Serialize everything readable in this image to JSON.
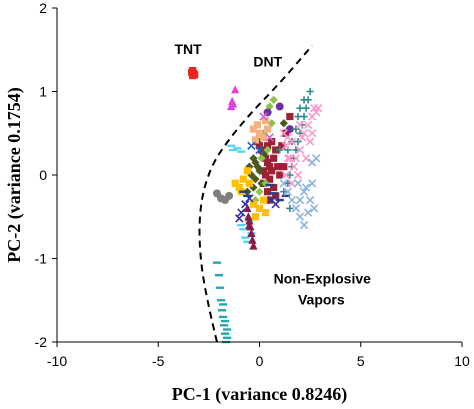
{
  "chart_data": {
    "type": "scatter",
    "title": "",
    "xlabel": "PC-1 (variance 0.8246)",
    "ylabel": "PC-2 (variance 0.1754)",
    "xlim": [
      -10,
      10
    ],
    "ylim": [
      -2,
      2
    ],
    "xticks": [
      "-10",
      "-5",
      "0",
      "5",
      "10"
    ],
    "yticks": [
      "-2",
      "-1",
      "0",
      "1",
      "2"
    ],
    "grid": false,
    "legend": "none",
    "annotations": [
      {
        "text": "TNT",
        "x": -4.2,
        "y": 1.45
      },
      {
        "text": "DNT",
        "x": -0.3,
        "y": 1.3
      },
      {
        "text": "Non-Explosive",
        "x": 0.7,
        "y": -1.3
      },
      {
        "text": "Vapors",
        "x": 1.9,
        "y": -1.55
      }
    ],
    "boundary": {
      "style": "dashed",
      "color": "#000000",
      "x": [
        -2.1,
        -2.7,
        -3.0,
        -2.9,
        -2.4,
        -1.6,
        -0.4,
        1.0,
        2.6
      ],
      "y": [
        -2.0,
        -1.4,
        -0.8,
        -0.3,
        0.1,
        0.4,
        0.75,
        1.1,
        1.55
      ]
    },
    "series": [
      {
        "color": "#e8261c",
        "marker": "square",
        "points": [
          [
            -3.3,
            1.25
          ],
          [
            -3.25,
            1.22
          ],
          [
            -3.3,
            1.19
          ],
          [
            -3.2,
            1.2
          ],
          [
            -3.35,
            1.23
          ]
        ]
      },
      {
        "color": "#e040e0",
        "marker": "triangle",
        "points": [
          [
            -1.2,
            1.02
          ],
          [
            -1.35,
            0.88
          ],
          [
            -1.4,
            0.82
          ],
          [
            -1.3,
            0.85
          ]
        ]
      },
      {
        "color": "#2aa6b0",
        "marker": "dash",
        "points": [
          [
            -2.1,
            -1.05
          ],
          [
            -2.0,
            -1.2
          ],
          [
            -1.95,
            -1.35
          ],
          [
            -1.9,
            -1.5
          ],
          [
            -1.85,
            -1.62
          ],
          [
            -1.8,
            -1.7
          ],
          [
            -1.75,
            -1.8
          ],
          [
            -1.7,
            -1.9
          ],
          [
            -1.65,
            -2.0
          ],
          [
            -1.7,
            -1.75
          ],
          [
            -1.8,
            -1.55
          ],
          [
            -1.6,
            -1.85
          ],
          [
            -1.6,
            -1.95
          ]
        ]
      },
      {
        "color": "#55d8ec",
        "marker": "dash",
        "points": [
          [
            -0.8,
            -0.65
          ],
          [
            -0.7,
            -0.75
          ],
          [
            -0.6,
            -0.8
          ],
          [
            -0.5,
            -0.55
          ],
          [
            -0.9,
            -0.6
          ],
          [
            -0.4,
            -0.7
          ],
          [
            -1.4,
            0.35
          ],
          [
            -1.3,
            0.3
          ],
          [
            -1.1,
            0.32
          ],
          [
            -0.9,
            0.28
          ]
        ]
      },
      {
        "color": "#8b1a4a",
        "marker": "triangle",
        "points": [
          [
            -0.6,
            -0.4
          ],
          [
            -0.55,
            -0.5
          ],
          [
            -0.5,
            -0.55
          ],
          [
            -0.45,
            -0.62
          ],
          [
            -0.4,
            -0.7
          ],
          [
            -0.35,
            -0.78
          ],
          [
            -0.5,
            -0.6
          ],
          [
            -0.3,
            -0.85
          ]
        ]
      },
      {
        "color": "#9b2335",
        "marker": "square",
        "points": [
          [
            -0.1,
            0.4
          ],
          [
            0.0,
            0.35
          ],
          [
            0.1,
            0.3
          ],
          [
            0.2,
            0.25
          ],
          [
            0.3,
            0.2
          ],
          [
            0.4,
            0.15
          ],
          [
            0.5,
            0.1
          ],
          [
            0.6,
            0.05
          ],
          [
            0.3,
            0.0
          ],
          [
            0.2,
            -0.1
          ],
          [
            0.4,
            -0.2
          ],
          [
            0.5,
            -0.3
          ],
          [
            0.7,
            0.2
          ],
          [
            0.9,
            0.1
          ],
          [
            0.8,
            0.3
          ],
          [
            0.6,
            0.4
          ],
          [
            0.5,
            -0.05
          ],
          [
            0.7,
            -0.15
          ],
          [
            1.0,
            0.0
          ],
          [
            0.4,
            0.35
          ],
          [
            0.2,
            0.05
          ],
          [
            0.8,
            -0.25
          ],
          [
            1.2,
            0.1
          ],
          [
            1.3,
            0.5
          ],
          [
            1.5,
            0.7
          ],
          [
            1.1,
            0.35
          ]
        ]
      },
      {
        "color": "#4a5a1c",
        "marker": "diamond",
        "points": [
          [
            -0.3,
            0.2
          ],
          [
            -0.2,
            0.15
          ],
          [
            -0.1,
            0.1
          ],
          [
            0.0,
            0.05
          ],
          [
            -0.4,
            0.0
          ],
          [
            -0.2,
            -0.05
          ],
          [
            0.1,
            -0.1
          ],
          [
            -0.5,
            0.1
          ],
          [
            -0.3,
            -0.15
          ],
          [
            0.2,
            0.25
          ],
          [
            1.2,
            0.62
          ],
          [
            -0.6,
            -0.2
          ]
        ]
      },
      {
        "color": "#8bc34a",
        "marker": "diamond",
        "points": [
          [
            0.1,
            0.2
          ],
          [
            0.0,
            -0.2
          ],
          [
            -0.2,
            -0.3
          ],
          [
            0.3,
            -0.1
          ],
          [
            0.4,
            0.3
          ],
          [
            0.6,
            0.62
          ],
          [
            0.7,
            0.9
          ],
          [
            0.5,
            0.82
          ],
          [
            0.2,
            0.5
          ]
        ]
      },
      {
        "color": "#ffc000",
        "marker": "square",
        "points": [
          [
            -1.2,
            -0.1
          ],
          [
            -1.0,
            -0.15
          ],
          [
            -0.8,
            -0.05
          ],
          [
            -0.6,
            0.05
          ],
          [
            -0.9,
            -0.2
          ],
          [
            -0.5,
            -0.1
          ],
          [
            -0.3,
            -0.35
          ],
          [
            0.0,
            -0.4
          ],
          [
            -0.2,
            -0.5
          ],
          [
            0.3,
            -0.45
          ],
          [
            0.2,
            -0.3
          ]
        ]
      },
      {
        "color": "#f4b183",
        "marker": "square",
        "points": [
          [
            -0.1,
            0.6
          ],
          [
            -0.3,
            0.55
          ],
          [
            0.0,
            0.5
          ],
          [
            0.3,
            0.65
          ],
          [
            0.4,
            0.55
          ],
          [
            -0.2,
            0.42
          ],
          [
            0.2,
            0.45
          ]
        ]
      },
      {
        "color": "#7f7f7f",
        "marker": "circle",
        "points": [
          [
            -2.1,
            -0.22
          ],
          [
            -1.9,
            -0.28
          ],
          [
            -1.7,
            -0.3
          ],
          [
            -1.5,
            -0.25
          ]
        ]
      },
      {
        "color": "#333399",
        "marker": "x",
        "points": [
          [
            -0.9,
            -0.45
          ],
          [
            -0.7,
            -0.35
          ],
          [
            -0.5,
            -0.28
          ],
          [
            -1.0,
            -0.52
          ],
          [
            0.6,
            -0.3
          ],
          [
            0.8,
            -0.35
          ]
        ]
      },
      {
        "color": "#1f3f8f",
        "marker": "dash",
        "points": [
          [
            -0.8,
            -0.2
          ],
          [
            -0.6,
            -0.25
          ],
          [
            0.5,
            -0.12
          ],
          [
            0.7,
            -0.22
          ],
          [
            1.0,
            -0.3
          ],
          [
            1.3,
            -0.25
          ]
        ]
      },
      {
        "color": "#7030a0",
        "marker": "circle",
        "points": [
          [
            1.0,
            0.82
          ],
          [
            0.4,
            0.75
          ],
          [
            1.5,
            0.55
          ]
        ]
      },
      {
        "color": "#cc66cc",
        "marker": "x",
        "points": [
          [
            0.2,
            0.7
          ],
          [
            0.5,
            0.45
          ]
        ]
      },
      {
        "color": "#2e8b8b",
        "marker": "plus",
        "points": [
          [
            1.2,
            -0.2
          ],
          [
            1.4,
            -0.1
          ],
          [
            1.5,
            0.0
          ],
          [
            1.6,
            0.1
          ],
          [
            1.7,
            0.2
          ],
          [
            1.8,
            0.3
          ],
          [
            1.9,
            0.4
          ],
          [
            2.0,
            0.5
          ],
          [
            2.1,
            0.6
          ],
          [
            2.2,
            0.7
          ],
          [
            2.3,
            0.8
          ],
          [
            2.4,
            0.9
          ],
          [
            2.5,
            1.0
          ],
          [
            1.6,
            0.4
          ],
          [
            1.9,
            0.7
          ],
          [
            2.2,
            0.9
          ],
          [
            1.4,
            0.3
          ],
          [
            1.8,
            0.55
          ],
          [
            2.0,
            0.8
          ],
          [
            1.5,
            -0.4
          ],
          [
            1.0,
            0.3
          ]
        ]
      },
      {
        "color": "#ff99cc",
        "marker": "x",
        "points": [
          [
            1.2,
            0.5
          ],
          [
            1.4,
            0.45
          ],
          [
            1.6,
            0.4
          ],
          [
            1.5,
            0.2
          ],
          [
            1.7,
            0.1
          ],
          [
            1.3,
            0.0
          ],
          [
            1.6,
            -0.1
          ],
          [
            1.8,
            0.2
          ],
          [
            2.0,
            0.3
          ],
          [
            2.2,
            0.5
          ],
          [
            2.4,
            0.6
          ],
          [
            2.6,
            0.7
          ],
          [
            2.5,
            0.4
          ],
          [
            2.3,
            0.2
          ],
          [
            1.9,
            0.0
          ],
          [
            2.1,
            0.45
          ],
          [
            2.7,
            0.8
          ],
          [
            2.8,
            0.75
          ],
          [
            1.4,
            0.2
          ],
          [
            2.0,
            0.6
          ],
          [
            2.6,
            0.5
          ],
          [
            2.9,
            0.8
          ],
          [
            1.3,
            0.35
          ]
        ]
      },
      {
        "color": "#8db3e2",
        "marker": "x",
        "points": [
          [
            1.2,
            -0.1
          ],
          [
            1.4,
            -0.2
          ],
          [
            1.6,
            -0.3
          ],
          [
            1.8,
            -0.4
          ],
          [
            2.0,
            -0.5
          ],
          [
            2.2,
            -0.6
          ],
          [
            2.4,
            -0.45
          ],
          [
            2.5,
            -0.3
          ],
          [
            2.3,
            -0.15
          ],
          [
            2.6,
            0.15
          ],
          [
            2.8,
            0.2
          ],
          [
            2.2,
            -0.2
          ],
          [
            2.0,
            -0.3
          ],
          [
            1.9,
            -0.1
          ],
          [
            2.6,
            -0.1
          ],
          [
            2.7,
            -0.4
          ]
        ]
      },
      {
        "color": "#1f5fbf",
        "marker": "x",
        "points": [
          [
            -0.4,
            0.35
          ],
          [
            0.0,
            0.3
          ]
        ]
      }
    ]
  }
}
